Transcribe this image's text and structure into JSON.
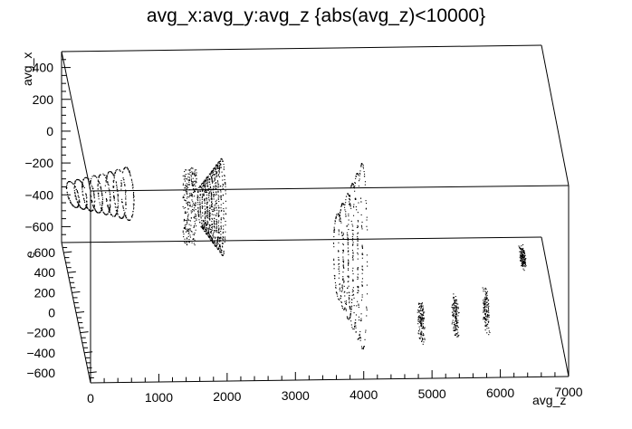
{
  "chart_data": {
    "type": "scatter",
    "title": "avg_x:avg_y:avg_z {abs(avg_z)<10000}",
    "xlabel": "avg_z",
    "ylabel": "avg_x",
    "zlabel": "avg_y",
    "ylabel_display": "e",
    "xlim": [
      0,
      7000
    ],
    "ylim": [
      -700,
      500
    ],
    "zlim": [
      -700,
      700
    ],
    "x_ticks": [
      "0",
      "1000",
      "2000",
      "3000",
      "4000",
      "5000",
      "6000",
      "7000"
    ],
    "y_ticks": [
      "400",
      "200",
      "0",
      "−200",
      "−400",
      "−600"
    ],
    "z_ticks": [
      "600",
      "400",
      "200",
      "0",
      "−200",
      "−400",
      "−600"
    ],
    "marker_color": "#000000",
    "point_clusters": [
      {
        "kind": "rings",
        "z_min": 150,
        "z_max": 950,
        "rings": 8,
        "x_center": -380,
        "x_half": 160,
        "depth": 0.02
      },
      {
        "kind": "block",
        "z_min": 1750,
        "z_max": 1950,
        "x_min": -680,
        "x_max": -190,
        "depth": 0.05
      },
      {
        "kind": "rings",
        "z_min": 2000,
        "z_max": 2300,
        "rings": 10,
        "x_center": -400,
        "x_half": 300,
        "depth": 0.1
      },
      {
        "kind": "rings",
        "z_min": 3900,
        "z_max": 4250,
        "rings": 6,
        "x_center": -500,
        "x_half": 580,
        "depth": 0.35
      },
      {
        "kind": "column",
        "z": 4900,
        "x_min": -580,
        "x_max": -380,
        "depth": 0.85
      },
      {
        "kind": "column",
        "z": 5400,
        "x_min": -540,
        "x_max": -340,
        "depth": 0.85
      },
      {
        "kind": "column",
        "z": 5850,
        "x_min": -520,
        "x_max": -310,
        "depth": 0.85
      },
      {
        "kind": "column",
        "z": 6450,
        "x_min": -250,
        "x_max": -180,
        "depth": 0.7
      }
    ]
  }
}
